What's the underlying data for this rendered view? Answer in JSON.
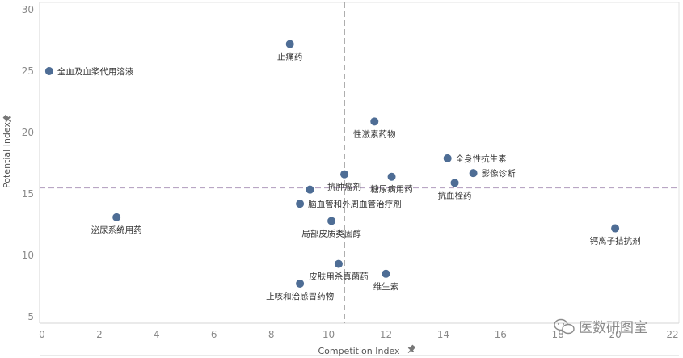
{
  "chart_data": {
    "type": "scatter",
    "xlabel": "Competition Index",
    "ylabel": "Potential Index",
    "xlim": [
      0,
      22
    ],
    "ylim": [
      4.5,
      30.5
    ],
    "x_ticks": [
      0,
      2,
      4,
      6,
      8,
      10,
      12,
      14,
      16,
      18,
      20,
      22
    ],
    "y_ticks": [
      5,
      10,
      15,
      20,
      25,
      30
    ],
    "reference_lines": {
      "x": 10.55,
      "y": 15.5
    },
    "grid": false,
    "colors": {
      "point": "#4e6d95",
      "ref_line_x": "#9a9a9a",
      "ref_line_y": "#b9a6c4",
      "axis": "#d5d5d5",
      "pin": "#777777"
    },
    "points": [
      {
        "label": "全血及血浆代用溶液",
        "x": 0.25,
        "y": 25.0,
        "label_pos": "right"
      },
      {
        "label": "止痛药",
        "x": 8.65,
        "y": 27.2,
        "label_pos": "below"
      },
      {
        "label": "性激素药物",
        "x": 11.6,
        "y": 20.9,
        "label_pos": "below"
      },
      {
        "label": "全身性抗生素",
        "x": 14.15,
        "y": 17.9,
        "label_pos": "right"
      },
      {
        "label": "影像诊断",
        "x": 15.05,
        "y": 16.7,
        "label_pos": "right"
      },
      {
        "label": "抗肿瘤剂",
        "x": 10.55,
        "y": 16.6,
        "label_pos": "below"
      },
      {
        "label": "糖尿病用药",
        "x": 12.2,
        "y": 16.4,
        "label_pos": "below"
      },
      {
        "label": "抗血栓药",
        "x": 14.4,
        "y": 15.9,
        "label_pos": "below"
      },
      {
        "label": "脑血管和外周血管治疗剂",
        "x": 9.0,
        "y": 14.2,
        "label_pos": "right"
      },
      {
        "label": "",
        "x": 9.35,
        "y": 15.35,
        "label_pos": "none"
      },
      {
        "label": "泌尿系统用药",
        "x": 2.6,
        "y": 13.1,
        "label_pos": "below"
      },
      {
        "label": "局部皮质类固醇",
        "x": 10.1,
        "y": 12.8,
        "label_pos": "below"
      },
      {
        "label": "钙离子拮抗剂",
        "x": 20.0,
        "y": 12.2,
        "label_pos": "below"
      },
      {
        "label": "皮肤用杀真菌药",
        "x": 10.35,
        "y": 9.3,
        "label_pos": "below"
      },
      {
        "label": "维生素",
        "x": 12.0,
        "y": 8.5,
        "label_pos": "below"
      },
      {
        "label": "止咳和治感冒药物",
        "x": 9.0,
        "y": 7.7,
        "label_pos": "below"
      }
    ]
  },
  "watermark": {
    "text": "医数研图室",
    "icon": "wechat-icon"
  }
}
